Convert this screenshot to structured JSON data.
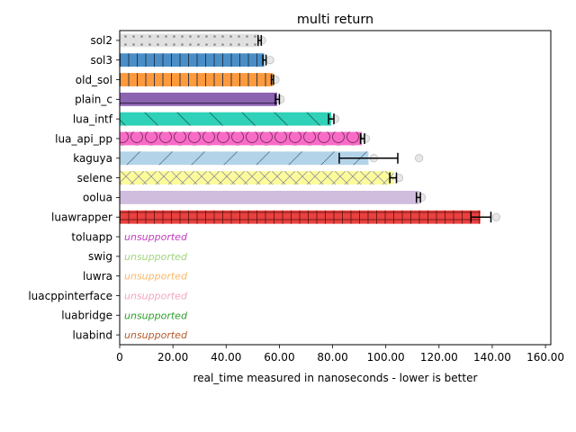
{
  "chart_data": {
    "type": "bar",
    "orientation": "horizontal",
    "title": "multi return",
    "xlabel": "real_time measured in nanoseconds - lower is better",
    "ylabel": "",
    "xlim": [
      0,
      162
    ],
    "xticks": [
      0,
      20,
      40,
      60,
      80,
      100,
      120,
      140,
      160
    ],
    "xtick_labels": [
      "0",
      "20.00",
      "40.00",
      "60.00",
      "80.00",
      "100.00",
      "120.00",
      "140.00",
      "160.00"
    ],
    "grid": false,
    "bars": [
      {
        "name": "sol2",
        "value": 52.5,
        "err_low": 52.0,
        "err_high": 53.2,
        "outliers": [
          53.5
        ],
        "color": "#e0e0e0",
        "hatch": "dots"
      },
      {
        "name": "sol3",
        "value": 54.3,
        "err_low": 53.8,
        "err_high": 55.0,
        "outliers": [
          56.5
        ],
        "color": "#4a8ec7",
        "hatch": "vlines"
      },
      {
        "name": "old_sol",
        "value": 57.5,
        "err_low": 57.0,
        "err_high": 57.8,
        "outliers": [
          58.5
        ],
        "color": "#ff9a3c",
        "hatch": "vlines"
      },
      {
        "name": "plain_c",
        "value": 59.2,
        "err_low": 58.5,
        "err_high": 60.0,
        "outliers": [
          60.5
        ],
        "color": "#8c63b0",
        "hatch": "hline"
      },
      {
        "name": "lua_intf",
        "value": 79.5,
        "err_low": 78.5,
        "err_high": 80.5,
        "outliers": [
          81.0
        ],
        "color": "#2fd1b8",
        "hatch": "backslash"
      },
      {
        "name": "lua_api_pp",
        "value": 91.0,
        "err_low": 90.5,
        "err_high": 92.0,
        "outliers": [
          92.5
        ],
        "color": "#f86cc8",
        "hatch": "circles"
      },
      {
        "name": "kaguya",
        "value": 93.5,
        "err_low": 82.5,
        "err_high": 104.5,
        "outliers": [
          95.5,
          112.5
        ],
        "color": "#b3d4e8",
        "hatch": "slash"
      },
      {
        "name": "selene",
        "value": 103.0,
        "err_low": 101.5,
        "err_high": 104.0,
        "outliers": [
          105.0
        ],
        "color": "#fcfc9c",
        "hatch": "cross"
      },
      {
        "name": "oolua",
        "value": 112.5,
        "err_low": 111.5,
        "err_high": 113.0,
        "outliers": [
          113.5
        ],
        "color": "#d0bcdc",
        "hatch": "none"
      },
      {
        "name": "luawrapper",
        "value": 135.5,
        "err_low": 132.0,
        "err_high": 139.5,
        "outliers": [
          141.5
        ],
        "color": "#e8413f",
        "hatch": "grid"
      }
    ],
    "unsupported": [
      {
        "name": "toluapp",
        "label": "unsupported",
        "color": "#c43dc0"
      },
      {
        "name": "swig",
        "label": "unsupported",
        "color": "#9fd67c"
      },
      {
        "name": "luwra",
        "label": "unsupported",
        "color": "#ffb766"
      },
      {
        "name": "luacppinterface",
        "label": "unsupported",
        "color": "#f4a6c0"
      },
      {
        "name": "luabridge",
        "label": "unsupported",
        "color": "#2ca02c"
      },
      {
        "name": "luabind",
        "label": "unsupported",
        "color": "#b85a28"
      }
    ]
  }
}
